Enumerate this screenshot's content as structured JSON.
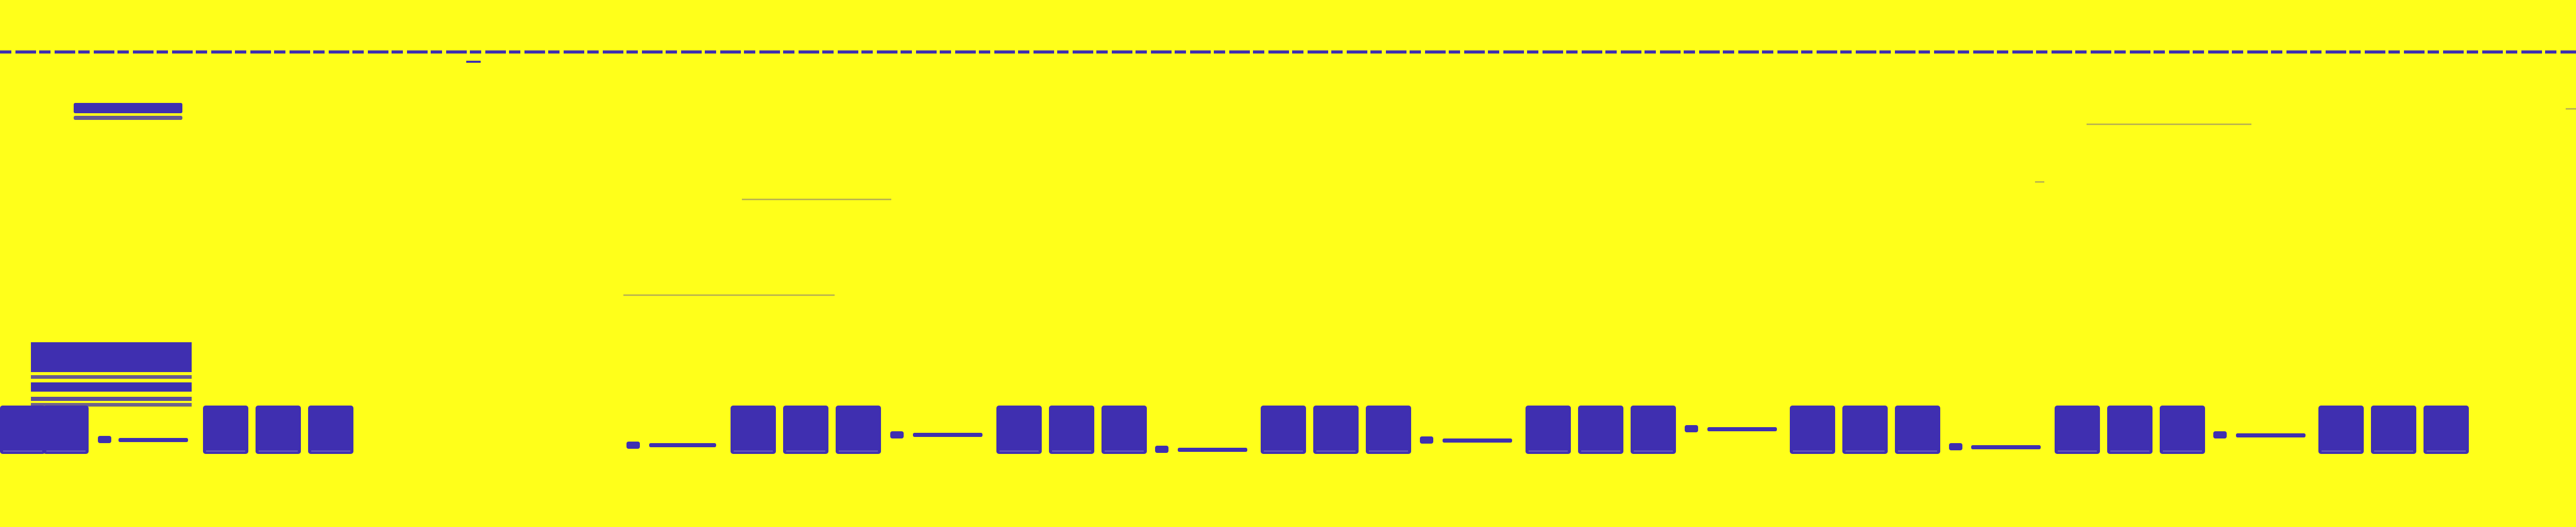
{
  "colors": {
    "background": "#FFFF1A",
    "foreground": "#3F2FB0"
  }
}
